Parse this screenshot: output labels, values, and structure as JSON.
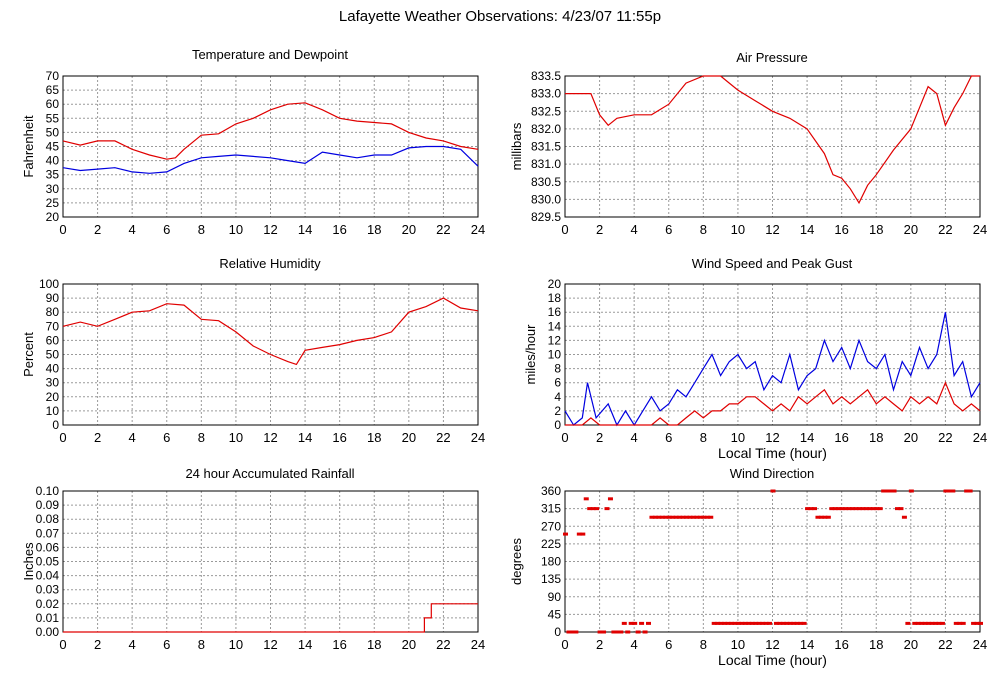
{
  "page": {
    "title": "Lafayette Weather Observations: 4/23/07 11:55p"
  },
  "colors": {
    "red": "#e00000",
    "blue": "#0000e0",
    "grid": "#9a9a9a"
  },
  "chart_data": [
    {
      "id": "temp",
      "type": "line",
      "title": "Temperature and Dewpoint",
      "xlabel": "",
      "ylabel": "Fahrenheit",
      "xlim": [
        0,
        24
      ],
      "ylim": [
        20,
        70
      ],
      "xticks": [
        0,
        2,
        4,
        6,
        8,
        10,
        12,
        14,
        16,
        18,
        20,
        22,
        24
      ],
      "yticks": [
        20,
        25,
        30,
        35,
        40,
        45,
        50,
        55,
        60,
        65,
        70
      ],
      "series": [
        {
          "color": "red",
          "x": [
            0,
            1,
            2,
            3,
            4,
            5,
            6,
            6.5,
            7,
            8,
            9,
            10,
            11,
            12,
            13,
            14,
            15,
            16,
            17,
            18,
            19,
            20,
            21,
            22,
            23,
            24
          ],
          "y": [
            47,
            45.5,
            47,
            47,
            44,
            42,
            40.5,
            41,
            44,
            49,
            49.5,
            53,
            55,
            58,
            60,
            60.5,
            58,
            55,
            54,
            53.5,
            53,
            50,
            48,
            47,
            45,
            44
          ]
        },
        {
          "color": "blue",
          "x": [
            0,
            1,
            2,
            3,
            4,
            5,
            6,
            7,
            8,
            9,
            10,
            11,
            12,
            13,
            14,
            15,
            16,
            17,
            18,
            19,
            20,
            21,
            22,
            23,
            24
          ],
          "y": [
            37.5,
            36.5,
            37,
            37.5,
            36,
            35.5,
            36,
            39,
            41,
            41.5,
            42,
            41.5,
            41,
            40,
            39,
            43,
            42,
            41,
            42,
            42,
            44.5,
            45,
            45,
            44,
            38
          ]
        }
      ]
    },
    {
      "id": "pressure",
      "type": "line",
      "title": "Air Pressure",
      "xlabel": "",
      "ylabel": "millibars",
      "xlim": [
        0,
        24
      ],
      "ylim": [
        829.5,
        833.5
      ],
      "xticks": [
        0,
        2,
        4,
        6,
        8,
        10,
        12,
        14,
        16,
        18,
        20,
        22,
        24
      ],
      "yticks": [
        829.5,
        830.0,
        830.5,
        831.0,
        831.5,
        832.0,
        832.5,
        833.0,
        833.5
      ],
      "series": [
        {
          "color": "red",
          "x": [
            0,
            1.5,
            2,
            2.5,
            3,
            4,
            5,
            6,
            7,
            8,
            9,
            9.5,
            10,
            11,
            12,
            13,
            14,
            15,
            15.5,
            16,
            16.5,
            17,
            17.5,
            18,
            19,
            20,
            20.5,
            21,
            21.5,
            22,
            22.5,
            23,
            23.5,
            24
          ],
          "y": [
            833.0,
            833.0,
            832.4,
            832.1,
            832.3,
            832.4,
            832.4,
            832.7,
            833.3,
            833.5,
            833.5,
            833.3,
            833.1,
            832.8,
            832.5,
            832.3,
            832.0,
            831.3,
            830.7,
            830.6,
            830.3,
            829.9,
            830.4,
            830.7,
            831.4,
            832.0,
            832.6,
            833.2,
            833.0,
            832.1,
            832.6,
            833.0,
            833.5,
            833.5
          ]
        }
      ]
    },
    {
      "id": "humidity",
      "type": "line",
      "title": "Relative Humidity",
      "xlabel": "",
      "ylabel": "Percent",
      "xlim": [
        0,
        24
      ],
      "ylim": [
        0,
        100
      ],
      "xticks": [
        0,
        2,
        4,
        6,
        8,
        10,
        12,
        14,
        16,
        18,
        20,
        22,
        24
      ],
      "yticks": [
        0,
        10,
        20,
        30,
        40,
        50,
        60,
        70,
        80,
        90,
        100
      ],
      "series": [
        {
          "color": "red",
          "x": [
            0,
            1,
            2,
            3,
            4,
            5,
            6,
            7,
            8,
            9,
            10,
            11,
            12,
            13,
            13.5,
            14,
            15,
            16,
            17,
            18,
            19,
            20,
            21,
            22,
            23,
            24
          ],
          "y": [
            70,
            73,
            70,
            75,
            80,
            81,
            86,
            85,
            75,
            74,
            66,
            56,
            50,
            45,
            43,
            53,
            55,
            57,
            60,
            62,
            66,
            80,
            84,
            90,
            83,
            81
          ]
        }
      ]
    },
    {
      "id": "wind",
      "type": "line",
      "title": "Wind Speed and Peak Gust",
      "xlabel": "Local Time (hour)",
      "ylabel": "miles/hour",
      "xlim": [
        0,
        24
      ],
      "ylim": [
        0,
        20
      ],
      "xticks": [
        0,
        2,
        4,
        6,
        8,
        10,
        12,
        14,
        16,
        18,
        20,
        22,
        24
      ],
      "yticks": [
        0,
        2,
        4,
        6,
        8,
        10,
        12,
        14,
        16,
        18,
        20
      ],
      "series": [
        {
          "color": "blue",
          "x": [
            0,
            0.5,
            1,
            1.3,
            1.8,
            2.5,
            3,
            3.5,
            4,
            4.5,
            5,
            5.5,
            6,
            6.5,
            7,
            7.5,
            8,
            8.5,
            9,
            9.5,
            10,
            10.5,
            11,
            11.5,
            12,
            12.5,
            13,
            13.5,
            14,
            14.5,
            15,
            15.5,
            16,
            16.5,
            17,
            17.5,
            18,
            18.5,
            19,
            19.5,
            20,
            20.5,
            21,
            21.5,
            22,
            22.5,
            23,
            23.5,
            24
          ],
          "y": [
            2,
            0,
            1,
            6,
            1,
            3,
            0,
            2,
            0,
            2,
            4,
            2,
            3,
            5,
            4,
            6,
            8,
            10,
            7,
            9,
            10,
            8,
            9,
            5,
            7,
            6,
            10,
            5,
            7,
            8,
            12,
            9,
            11,
            8,
            12,
            9,
            8,
            10,
            5,
            9,
            7,
            11,
            8,
            10,
            16,
            7,
            9,
            4,
            6
          ]
        },
        {
          "color": "red",
          "x": [
            0,
            1,
            1.5,
            2,
            2.5,
            3,
            3.5,
            4,
            4.5,
            5,
            5.5,
            6,
            6.5,
            7,
            7.5,
            8,
            8.5,
            9,
            9.5,
            10,
            10.5,
            11,
            11.5,
            12,
            12.5,
            13,
            13.5,
            14,
            14.5,
            15,
            15.5,
            16,
            16.5,
            17,
            17.5,
            18,
            18.5,
            19,
            19.5,
            20,
            20.5,
            21,
            21.5,
            22,
            22.5,
            23,
            23.5,
            24
          ],
          "y": [
            0,
            0,
            1,
            0,
            0,
            0,
            0,
            0,
            0,
            0,
            1,
            0,
            0,
            1,
            2,
            1,
            2,
            2,
            3,
            3,
            4,
            4,
            3,
            2,
            3,
            2,
            4,
            3,
            4,
            5,
            3,
            4,
            3,
            4,
            5,
            3,
            4,
            3,
            2,
            4,
            3,
            4,
            3,
            6,
            3,
            2,
            3,
            2
          ]
        }
      ]
    },
    {
      "id": "rain",
      "type": "line",
      "title": "24 hour Accumulated Rainfall",
      "xlabel": "",
      "ylabel": "Inches",
      "xlim": [
        0,
        24
      ],
      "ylim": [
        0,
        0.1
      ],
      "xticks": [
        0,
        2,
        4,
        6,
        8,
        10,
        12,
        14,
        16,
        18,
        20,
        22,
        24
      ],
      "yticks": [
        "0.00",
        "0.01",
        "0.02",
        "0.03",
        "0.04",
        "0.05",
        "0.06",
        "0.07",
        "0.08",
        "0.09",
        "0.10"
      ],
      "series": [
        {
          "color": "red",
          "x": [
            0,
            20.9,
            20.9,
            21.3,
            21.3,
            24
          ],
          "y": [
            0,
            0,
            0.01,
            0.01,
            0.02,
            0.02
          ]
        }
      ]
    },
    {
      "id": "winddir",
      "type": "scatter",
      "title": "Wind Direction",
      "xlabel": "Local Time (hour)",
      "ylabel": "degrees",
      "xlim": [
        0,
        24
      ],
      "ylim": [
        0,
        360
      ],
      "xticks": [
        0,
        2,
        4,
        6,
        8,
        10,
        12,
        14,
        16,
        18,
        20,
        22,
        24
      ],
      "yticks": [
        0,
        45,
        90,
        135,
        180,
        225,
        270,
        315,
        360
      ],
      "series": [
        {
          "color": "red",
          "x": [
            0,
            0.2,
            0.4,
            0.6,
            0.8,
            1.0,
            1.2,
            1.4,
            1.6,
            1.8,
            2.0,
            2.2,
            2.4,
            2.6,
            2.8,
            3.0,
            3.2,
            3.4,
            3.6,
            3.8,
            4.0,
            4.2,
            4.4,
            4.6,
            4.8,
            5.0,
            5.2,
            5.4,
            5.6,
            5.8,
            6.0,
            6.2,
            6.4,
            6.6,
            6.8,
            7.0,
            7.2,
            7.4,
            7.6,
            7.8,
            8.0,
            8.2,
            8.4,
            8.6,
            8.8,
            9.0,
            9.2,
            9.4,
            9.6,
            9.8,
            10.0,
            10.2,
            10.4,
            10.6,
            10.8,
            11.0,
            11.2,
            11.4,
            11.6,
            11.8,
            12.0,
            12.2,
            12.4,
            12.6,
            12.8,
            13.0,
            13.2,
            13.4,
            13.6,
            13.8,
            14.0,
            14.2,
            14.4,
            14.6,
            14.8,
            15.0,
            15.2,
            15.4,
            15.6,
            15.8,
            16.0,
            16.2,
            16.4,
            16.6,
            16.8,
            17.0,
            17.2,
            17.4,
            17.6,
            17.8,
            18.0,
            18.2,
            18.4,
            18.6,
            18.8,
            19.0,
            19.2,
            19.4,
            19.6,
            19.8,
            20.0,
            20.2,
            20.4,
            20.6,
            20.8,
            21.0,
            21.2,
            21.4,
            21.6,
            21.8,
            22.0,
            22.2,
            22.4,
            22.6,
            22.8,
            23.0,
            23.2,
            23.4,
            23.6,
            23.8,
            24.0
          ],
          "y": [
            250,
            0,
            0,
            0,
            250,
            250,
            340,
            315,
            315,
            315,
            0,
            0,
            315,
            340,
            0,
            0,
            0,
            22,
            0,
            22,
            22,
            0,
            22,
            0,
            22,
            293,
            293,
            293,
            293,
            293,
            293,
            293,
            293,
            293,
            293,
            293,
            293,
            293,
            293,
            293,
            293,
            293,
            293,
            22,
            22,
            22,
            22,
            22,
            22,
            22,
            22,
            22,
            22,
            22,
            22,
            22,
            22,
            22,
            22,
            22,
            360,
            22,
            22,
            22,
            22,
            22,
            22,
            22,
            22,
            22,
            315,
            315,
            315,
            293,
            293,
            293,
            293,
            315,
            315,
            315,
            315,
            315,
            315,
            315,
            315,
            315,
            315,
            315,
            315,
            315,
            315,
            315,
            360,
            360,
            360,
            360,
            315,
            315,
            293,
            22,
            360,
            22,
            22,
            22,
            22,
            22,
            22,
            22,
            22,
            22,
            360,
            360,
            360,
            22,
            22,
            22,
            360,
            360,
            22,
            22,
            22
          ]
        }
      ]
    }
  ]
}
